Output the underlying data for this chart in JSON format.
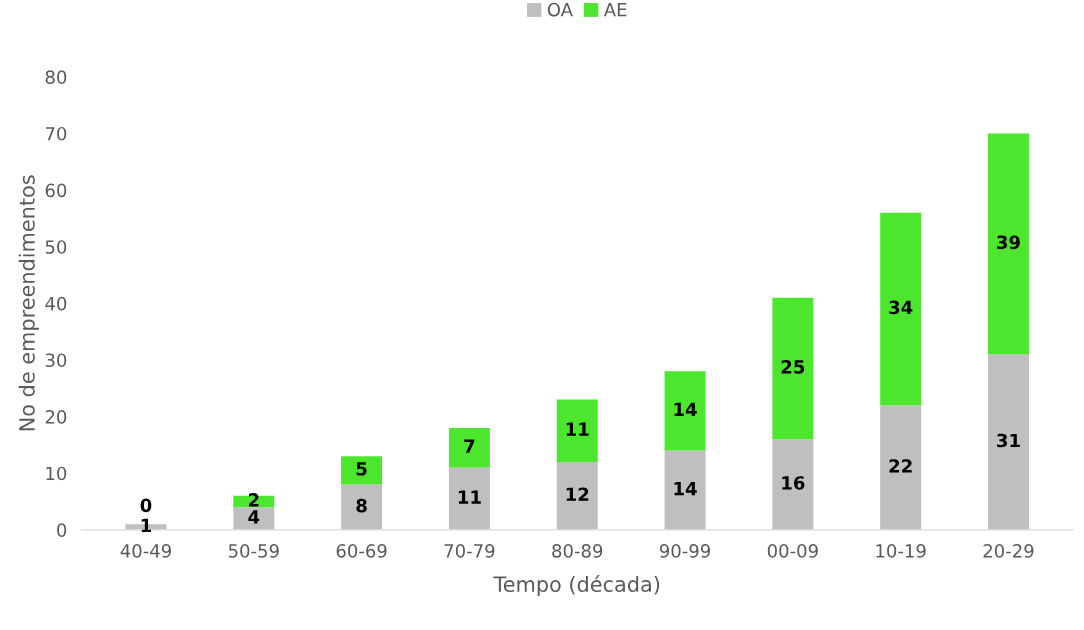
{
  "chart_data": {
    "type": "bar",
    "stacked": true,
    "xlabel": "Tempo (década)",
    "ylabel": "No de empreendimentos",
    "categories": [
      "40-49",
      "50-59",
      "60-69",
      "70-79",
      "80-89",
      "90-99",
      "00-09",
      "10-19",
      "20-29"
    ],
    "series": [
      {
        "name": "OA",
        "color": "#bfbfbf",
        "values": [
          1,
          4,
          8,
          11,
          12,
          14,
          16,
          22,
          31
        ]
      },
      {
        "name": "AE",
        "color": "#4ce62e",
        "values": [
          0,
          2,
          5,
          7,
          11,
          14,
          25,
          34,
          39
        ]
      }
    ],
    "ylim": [
      0,
      80
    ],
    "yticks": [
      0,
      10,
      20,
      30,
      40,
      50,
      60,
      70,
      80
    ],
    "data_labels": true,
    "grid": false,
    "legend": "top"
  }
}
